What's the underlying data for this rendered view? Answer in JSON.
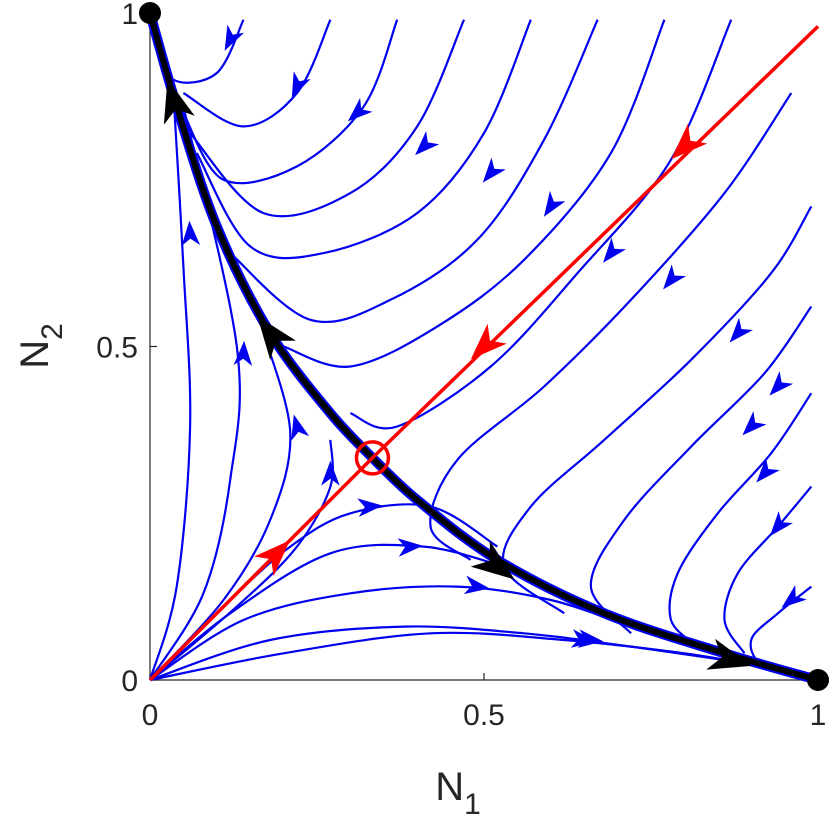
{
  "chart_data": {
    "type": "phase-portrait",
    "xlabel": "N",
    "xlabel_sub": "1",
    "ylabel": "N",
    "ylabel_sub": "2",
    "xlim": [
      0,
      1
    ],
    "ylim": [
      0,
      1
    ],
    "xticks": [
      0,
      0.5,
      1
    ],
    "yticks": [
      0,
      0.5,
      1
    ],
    "xtick_labels": [
      "0",
      "0.5",
      "1"
    ],
    "ytick_labels": [
      "0",
      "0.5",
      "1"
    ],
    "grid": false,
    "colors": {
      "trajectory": "#0000ee",
      "separatrix": "#ff0000",
      "manifold": "#000000",
      "axis": "#262626"
    },
    "stable_points": [
      [
        0,
        1
      ],
      [
        1,
        0
      ]
    ],
    "saddle_point": [
      0.333,
      0.333
    ],
    "separatrix": {
      "upper": [
        [
          1.0,
          0.98
        ],
        [
          0.333,
          0.333
        ]
      ],
      "lower": [
        [
          0.0,
          0.0
        ],
        [
          0.333,
          0.333
        ]
      ],
      "arrows": [
        [
          0.8,
          0.8
        ],
        [
          0.5,
          0.5
        ],
        [
          0.19,
          0.19
        ]
      ]
    },
    "unstable_manifold": {
      "to_upper": [
        [
          0.333,
          0.333
        ],
        [
          0.27,
          0.4
        ],
        [
          0.18,
          0.52
        ],
        [
          0.1,
          0.68
        ],
        [
          0.04,
          0.86
        ],
        [
          0.0,
          1.0
        ]
      ],
      "to_lower": [
        [
          0.333,
          0.333
        ],
        [
          0.4,
          0.27
        ],
        [
          0.52,
          0.18
        ],
        [
          0.68,
          0.1
        ],
        [
          0.86,
          0.04
        ],
        [
          1.0,
          0.0
        ]
      ],
      "arrows": [
        [
          0.035,
          0.87
        ],
        [
          0.18,
          0.52
        ],
        [
          0.52,
          0.17
        ],
        [
          0.87,
          0.03
        ]
      ]
    },
    "trajectories": [
      {
        "points": [
          [
            0.14,
            0.99
          ],
          [
            0.1,
            0.91
          ],
          [
            0.035,
            0.9
          ],
          [
            0.01,
            0.96
          ],
          [
            0.0,
            1.0
          ]
        ],
        "arrows": [
          [
            0.12,
            0.96
          ]
        ]
      },
      {
        "points": [
          [
            0.27,
            0.99
          ],
          [
            0.22,
            0.88
          ],
          [
            0.14,
            0.83
          ],
          [
            0.05,
            0.88
          ]
        ],
        "arrows": [
          [
            0.22,
            0.89
          ]
        ]
      },
      {
        "points": [
          [
            0.37,
            0.99
          ],
          [
            0.32,
            0.86
          ],
          [
            0.22,
            0.77
          ],
          [
            0.11,
            0.75
          ],
          [
            0.05,
            0.85
          ]
        ],
        "arrows": [
          [
            0.31,
            0.85
          ]
        ]
      },
      {
        "points": [
          [
            0.47,
            0.99
          ],
          [
            0.4,
            0.83
          ],
          [
            0.3,
            0.73
          ],
          [
            0.17,
            0.7
          ],
          [
            0.06,
            0.82
          ]
        ],
        "arrows": [
          [
            0.41,
            0.8
          ]
        ]
      },
      {
        "points": [
          [
            0.57,
            0.99
          ],
          [
            0.5,
            0.82
          ],
          [
            0.4,
            0.7
          ],
          [
            0.26,
            0.64
          ],
          [
            0.15,
            0.65
          ],
          [
            0.07,
            0.79
          ]
        ],
        "arrows": [
          [
            0.51,
            0.76
          ]
        ]
      },
      {
        "points": [
          [
            0.67,
            0.99
          ],
          [
            0.59,
            0.81
          ],
          [
            0.49,
            0.66
          ],
          [
            0.36,
            0.57
          ],
          [
            0.24,
            0.54
          ],
          [
            0.12,
            0.64
          ]
        ],
        "arrows": [
          [
            0.6,
            0.71
          ]
        ]
      },
      {
        "points": [
          [
            0.77,
            0.99
          ],
          [
            0.69,
            0.79
          ],
          [
            0.56,
            0.63
          ],
          [
            0.43,
            0.53
          ],
          [
            0.3,
            0.47
          ],
          [
            0.2,
            0.5
          ]
        ],
        "arrows": [
          [
            0.69,
            0.64
          ]
        ]
      },
      {
        "points": [
          [
            0.87,
            0.99
          ],
          [
            0.78,
            0.78
          ],
          [
            0.64,
            0.61
          ],
          [
            0.51,
            0.47
          ],
          [
            0.37,
            0.38
          ],
          [
            0.3,
            0.4
          ]
        ],
        "arrows": [
          [
            0.78,
            0.6
          ]
        ]
      },
      {
        "points": [
          [
            0.96,
            0.88
          ],
          [
            0.86,
            0.73
          ],
          [
            0.72,
            0.57
          ],
          [
            0.59,
            0.44
          ],
          [
            0.46,
            0.33
          ],
          [
            0.42,
            0.23
          ],
          [
            0.48,
            0.18
          ]
        ],
        "arrows": [
          [
            0.88,
            0.52
          ]
        ]
      },
      {
        "points": [
          [
            0.99,
            0.71
          ],
          [
            0.93,
            0.61
          ],
          [
            0.81,
            0.48
          ],
          [
            0.68,
            0.36
          ],
          [
            0.57,
            0.26
          ],
          [
            0.53,
            0.17
          ],
          [
            0.62,
            0.1
          ]
        ],
        "arrows": [
          [
            0.94,
            0.44
          ]
        ]
      },
      {
        "points": [
          [
            0.99,
            0.56
          ],
          [
            0.92,
            0.46
          ],
          [
            0.81,
            0.35
          ],
          [
            0.71,
            0.24
          ],
          [
            0.66,
            0.14
          ],
          [
            0.72,
            0.07
          ]
        ],
        "arrows": [
          [
            0.9,
            0.38
          ]
        ]
      },
      {
        "points": [
          [
            0.99,
            0.43
          ],
          [
            0.93,
            0.34
          ],
          [
            0.85,
            0.25
          ],
          [
            0.79,
            0.16
          ],
          [
            0.78,
            0.09
          ],
          [
            0.82,
            0.05
          ]
        ],
        "arrows": [
          [
            0.92,
            0.31
          ]
        ]
      },
      {
        "points": [
          [
            0.99,
            0.29
          ],
          [
            0.94,
            0.23
          ],
          [
            0.88,
            0.16
          ],
          [
            0.86,
            0.09
          ],
          [
            0.89,
            0.04
          ]
        ],
        "arrows": [
          [
            0.94,
            0.23
          ]
        ]
      },
      {
        "points": [
          [
            0.99,
            0.14
          ],
          [
            0.94,
            0.1
          ],
          [
            0.9,
            0.06
          ],
          [
            0.92,
            0.02
          ],
          [
            1.0,
            0.0
          ]
        ],
        "arrows": [
          [
            0.96,
            0.12
          ]
        ]
      },
      {
        "points": [
          [
            0.0,
            0.0
          ],
          [
            0.04,
            0.14
          ],
          [
            0.06,
            0.38
          ],
          [
            0.05,
            0.62
          ],
          [
            0.035,
            0.88
          ]
        ],
        "arrows": [
          [
            0.06,
            0.67
          ]
        ]
      },
      {
        "points": [
          [
            0.0,
            0.0
          ],
          [
            0.08,
            0.13
          ],
          [
            0.12,
            0.3
          ],
          [
            0.13,
            0.5
          ],
          [
            0.05,
            0.86
          ]
        ],
        "arrows": [
          [
            0.14,
            0.49
          ]
        ]
      },
      {
        "points": [
          [
            0.0,
            0.0
          ],
          [
            0.11,
            0.12
          ],
          [
            0.18,
            0.24
          ],
          [
            0.21,
            0.37
          ],
          [
            0.17,
            0.52
          ]
        ],
        "arrows": [
          [
            0.22,
            0.38
          ]
        ]
      },
      {
        "points": [
          [
            0.0,
            0.0
          ],
          [
            0.13,
            0.11
          ],
          [
            0.22,
            0.2
          ],
          [
            0.27,
            0.29
          ],
          [
            0.27,
            0.36
          ]
        ],
        "arrows": [
          [
            0.27,
            0.31
          ]
        ]
      },
      {
        "points": [
          [
            0.0,
            0.0
          ],
          [
            0.12,
            0.12
          ],
          [
            0.21,
            0.2
          ],
          [
            0.3,
            0.25
          ],
          [
            0.42,
            0.26
          ],
          [
            0.52,
            0.2
          ]
        ],
        "arrows": [
          [
            0.33,
            0.26
          ]
        ]
      },
      {
        "points": [
          [
            0.0,
            0.0
          ],
          [
            0.12,
            0.1
          ],
          [
            0.27,
            0.19
          ],
          [
            0.41,
            0.2
          ],
          [
            0.53,
            0.17
          ]
        ],
        "arrows": [
          [
            0.39,
            0.2
          ]
        ]
      },
      {
        "points": [
          [
            0.0,
            0.0
          ],
          [
            0.14,
            0.09
          ],
          [
            0.3,
            0.13
          ],
          [
            0.46,
            0.14
          ],
          [
            0.6,
            0.12
          ],
          [
            0.72,
            0.08
          ]
        ],
        "arrows": [
          [
            0.49,
            0.14
          ]
        ]
      },
      {
        "points": [
          [
            0.0,
            0.0
          ],
          [
            0.18,
            0.06
          ],
          [
            0.38,
            0.08
          ],
          [
            0.56,
            0.07
          ],
          [
            0.72,
            0.05
          ],
          [
            0.86,
            0.03
          ]
        ],
        "arrows": [
          [
            0.65,
            0.06
          ]
        ]
      },
      {
        "points": [
          [
            0.0,
            0.0
          ],
          [
            0.2,
            0.04
          ],
          [
            0.42,
            0.07
          ],
          [
            0.62,
            0.06
          ],
          [
            0.8,
            0.04
          ],
          [
            0.92,
            0.02
          ]
        ],
        "arrows": [
          [
            0.66,
            0.06
          ]
        ]
      }
    ]
  }
}
